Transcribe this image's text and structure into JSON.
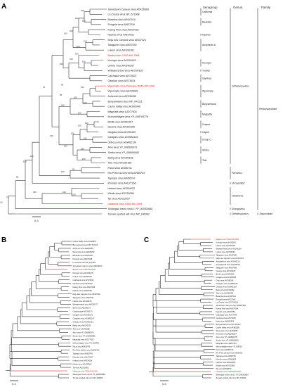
{
  "panels": [
    "A",
    "B",
    "C"
  ],
  "headers": {
    "serogroup": "Serogroup",
    "genus": "Genus",
    "family": "Family"
  },
  "treeA": {
    "taxa": [
      {
        "name": "Jamestown Canyon virus ADK36669"
      },
      {
        "name": "La Crosse virus NP_671968"
      },
      {
        "name": "Bwamba virus AIN37019"
      },
      {
        "name": "Pongola virus AIN37016"
      },
      {
        "name": "Kaeng Khoi virus AIN37025"
      },
      {
        "name": "Nyando virus AIN37021"
      },
      {
        "name": "Moju dos Campos virus AIN37024"
      },
      {
        "name": "Tataguine virus AIN37030"
      },
      {
        "name": "Lukuni virus AKO90162"
      },
      {
        "name": "Baakal virus C593-MX-2008",
        "highlight": true
      },
      {
        "name": "Koongol virus AKO90161"
      },
      {
        "name": "Umbre virus AKO90167"
      },
      {
        "name": "Witwatersrand virus AKO90163"
      },
      {
        "name": "Calchaqui virus AIS74637"
      },
      {
        "name": "Gamboa virus AIS74634"
      },
      {
        "name": "Wyeomyia virus Palenque B549-MX-2008",
        "highlight": true
      },
      {
        "name": "Wyeomyia virus AEZ35281"
      },
      {
        "name": "Anhembi virus AEZ35255"
      },
      {
        "name": "Bunyamwera virus NP_047211"
      },
      {
        "name": "Cache Valley virus AGI03946"
      },
      {
        "name": "Mapputta virus AJD77604"
      },
      {
        "name": "Murrumbidgee virus YP_008709776"
      },
      {
        "name": "Bimiti virus AKO90157"
      },
      {
        "name": "Guama virus AKO90160"
      },
      {
        "name": "Guajara virus AKO90159"
      },
      {
        "name": "Caraparu virus AGW82145"
      },
      {
        "name": "Oriboca virus AGW82130"
      },
      {
        "name": "Aino virus YP_006590079"
      },
      {
        "name": "Simbu virus YP_006590082"
      },
      {
        "name": "Bahig virus AKO90156"
      },
      {
        "name": "Tete virus AKO90165"
      },
      {
        "name": "Pacui virus AIN55741"
      },
      {
        "name": "Rio Preto da Eva virus AIN55744"
      },
      {
        "name": "Tapirape virus AIN55747"
      },
      {
        "name": "Khurdun virus AHL27166"
      },
      {
        "name": "Herbert virus AFR34023"
      },
      {
        "name": "Kibale virus AGX32058"
      },
      {
        "name": "Tai virus AGX32057"
      },
      {
        "name": "Lakamha virus C559-MX-2008",
        "highlight": true
      },
      {
        "name": "Shuangao insect virus 1 YP_009300681"
      },
      {
        "name": "Tomato spotted wilt virus NP_049362"
      }
    ],
    "bootstrap": [
      "100",
      "100",
      "100",
      "100",
      "100",
      "100",
      "100",
      "100",
      "100",
      "100",
      "100",
      "96",
      "95",
      "76",
      "100",
      "100",
      "100",
      "100",
      "100",
      "100",
      "100",
      "100",
      "100",
      "100",
      "100",
      "100",
      "100",
      "100",
      "92",
      "100",
      "100",
      "100",
      "100",
      "100",
      "82",
      "72",
      "100"
    ],
    "serogroups": [
      "California",
      "Bwamba",
      "Nyando",
      "Anopheles A",
      "Koongol",
      "Turlock",
      "Gamboa",
      "Wyeomyia",
      "Bunyamwera",
      "Mapputta",
      "Guama",
      "Capim",
      "Group C",
      "Simbu",
      "Tete"
    ],
    "genera": [
      "Orthobunyavirus",
      "Pacuvirus",
      "Unclassified",
      "Herbevirus",
      "Shangavirus",
      "Orthotospovirus"
    ],
    "families": [
      "Peribunyaviridae",
      "Tospoviridae"
    ],
    "scale": "0.3"
  },
  "treeB": {
    "taxa": [
      {
        "name": "Cache Valley virus AGI03947"
      },
      {
        "name": "Bunyamwera virus NP_047212"
      },
      {
        "name": "Anhembi virus AEZ35256"
      },
      {
        "name": "Wyeomyia virus AEZ35282"
      },
      {
        "name": "Bwamba virus AIN37020"
      },
      {
        "name": "Pongola virus AIN37026"
      },
      {
        "name": "La Crosse virus NP_671969"
      },
      {
        "name": "Jamestown Canyon virus ADK36670"
      },
      {
        "name": "Baakal virus C593-MX-2008",
        "highlight": true
      },
      {
        "name": "Koongol virus AKO90175"
      },
      {
        "name": "Umbre virus AKO90178"
      },
      {
        "name": "Calchaqui virus AIS74642"
      },
      {
        "name": "Gamboa virus AIS74639"
      },
      {
        "name": "Kaeng Khoi virus AIN37033"
      },
      {
        "name": "Nyando virus AIN37035"
      },
      {
        "name": "Moju dos Campos virus AIN37032"
      },
      {
        "name": "Tataguine virus AIN37040"
      },
      {
        "name": "Lukuni virus AKO90176"
      },
      {
        "name": "Witwatersrand virus AKO90177"
      },
      {
        "name": "Bimiti virus AKO90171"
      },
      {
        "name": "Guama virus AKO90173"
      },
      {
        "name": "Guajara virus AKO90172"
      },
      {
        "name": "Caraparu virus AGW82147"
      },
      {
        "name": "Oriboca virus AGW82131"
      },
      {
        "name": "Bahig virus AKO90170"
      },
      {
        "name": "Tete virus AKO90180"
      },
      {
        "name": "Aino virus YP_006590076"
      },
      {
        "name": "Simbu virus YP_006590085"
      },
      {
        "name": "Mapputta virus AJD77603"
      },
      {
        "name": "Murrumbidgee virus YP_008709"
      },
      {
        "name": "Pacui virus AIN55745"
      },
      {
        "name": "Rio Preto da Eva virus AIN55746"
      },
      {
        "name": "Tapirape virus AIN55749"
      },
      {
        "name": "Khurdun virus AHL27167"
      },
      {
        "name": "Herbert virus AFR34024"
      },
      {
        "name": "Kibale virus AGX32063"
      },
      {
        "name": "Tai virus AGX32062"
      },
      {
        "name": "Lakamha virus C559-MX-2008",
        "highlight": true
      },
      {
        "name": "Shuangao insect virus 1 YP_009300682"
      },
      {
        "name": "Tomato spotted wilt virus NP_049359"
      }
    ],
    "scale": "0.4"
  },
  "treeC": {
    "taxa": [
      {
        "name": "Baakal virus C593-MX-2008",
        "highlight": true
      },
      {
        "name": "Koongol virus AKO90191"
      },
      {
        "name": "Umbre virus AKO90195"
      },
      {
        "name": "Witwatersrand virus AKO90199"
      },
      {
        "name": "Lukuni virus AKO90194"
      },
      {
        "name": "Tataguine virus AIN37045"
      },
      {
        "name": "Moju dos Campos virus AIN37044"
      },
      {
        "name": "Anopheles A virus ACN43212"
      },
      {
        "name": "Anopheles B virus ACN43214"
      },
      {
        "name": "Tataguine virus AIN37046"
      },
      {
        "name": "Guama virus AKO90187"
      },
      {
        "name": "Bimiti virus AKO90183"
      },
      {
        "name": "Guajara virus AKO90185"
      },
      {
        "name": "Catu virus AKO90186"
      },
      {
        "name": "Caraparu virus AGW82146"
      },
      {
        "name": "Oriboca virus AGW82129"
      },
      {
        "name": "Bahig virus AKO90182"
      },
      {
        "name": "Tete virus AKO90198"
      },
      {
        "name": "Bwamba virus AIN37042"
      },
      {
        "name": "Pongola virus AIN37043"
      },
      {
        "name": "La Crosse virus NC 004110"
      },
      {
        "name": "Jamestown Canyon virus HM007350"
      },
      {
        "name": "Kaeng Khoi virus AIN37054"
      },
      {
        "name": "Nyando virus AIN37052"
      },
      {
        "name": "Calchaqui virus AIS74643"
      },
      {
        "name": "Gamboa virus AIS74645"
      },
      {
        "name": "Nola virus AMW97976"
      },
      {
        "name": "Bunyamwera virus NC 001927"
      },
      {
        "name": "Cache Valley virus AKI80288"
      },
      {
        "name": "Wyeomyia virus AEZ35287"
      },
      {
        "name": "Anhembi virus AEZ35264"
      },
      {
        "name": "Aino virus YP_006590078"
      },
      {
        "name": "Simbu virus YP_006590083"
      },
      {
        "name": "Mapputta virus JN817057"
      },
      {
        "name": "Murrumbidgee virus YP_008709"
      },
      {
        "name": "Pacui virus AIN55746"
      },
      {
        "name": "Rio Preto da Eva virus AIN55751"
      },
      {
        "name": "Tapirape virus AIN55750"
      },
      {
        "name": "Khurdun virus KF981635"
      },
      {
        "name": "Herbert virus AFR34025"
      },
      {
        "name": "Kibale virus AGX32066"
      },
      {
        "name": "Tai virus KF590572"
      },
      {
        "name": "Lakamha virus C559-MX-2008",
        "highlight": true
      },
      {
        "name": "Shuangao insect virus 1 YP_009300683"
      },
      {
        "name": "Tomato spotted wilt virus NP_049362"
      }
    ],
    "scale": "0.3"
  }
}
